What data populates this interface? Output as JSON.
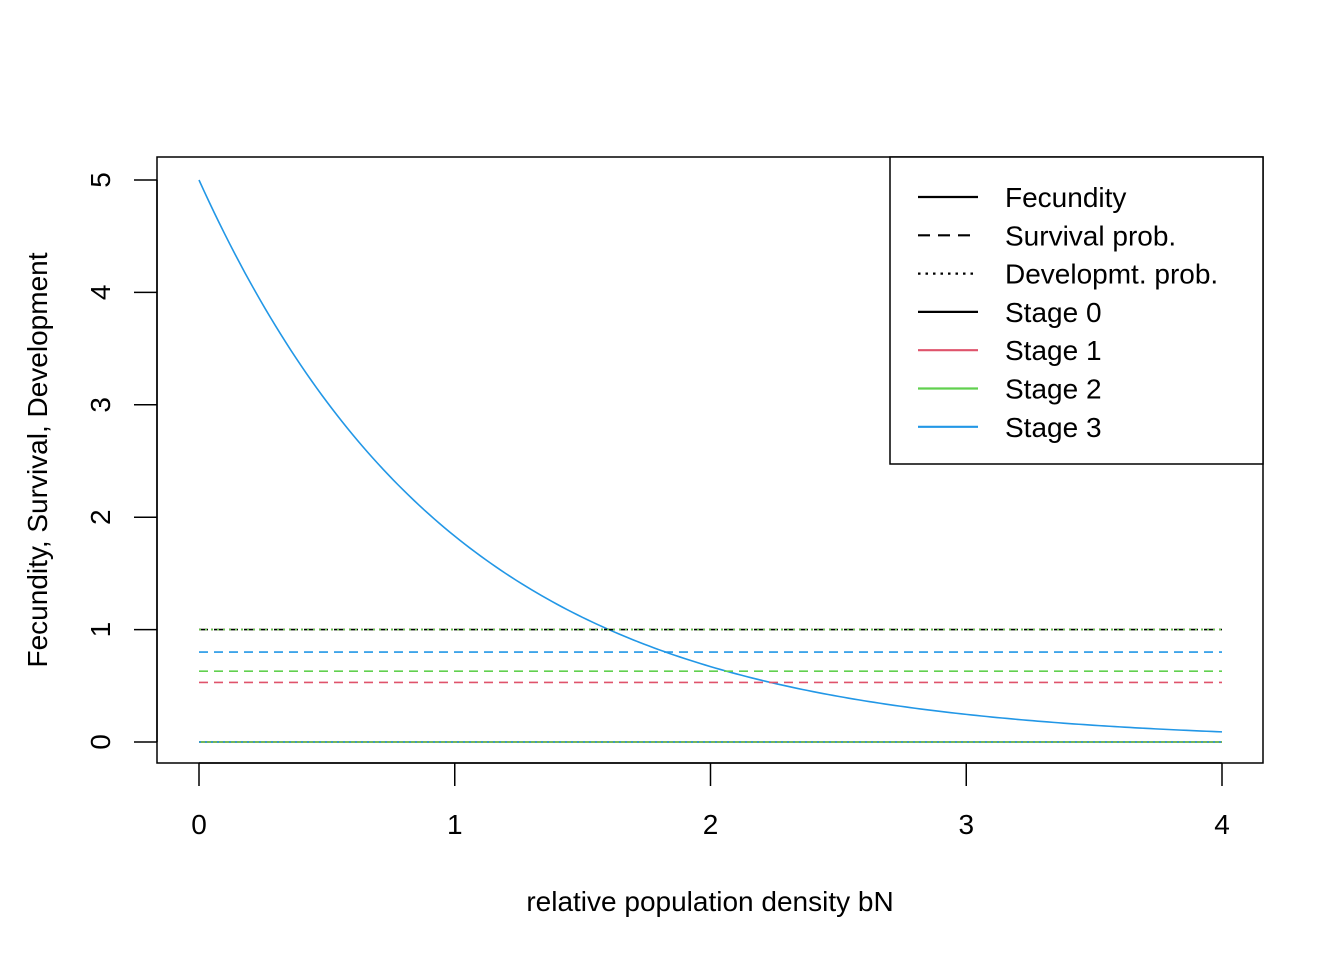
{
  "chart_data": {
    "type": "line",
    "title": "",
    "xlabel": "relative population density bN",
    "ylabel": "Fecundity, Survival, Development",
    "xlim": [
      0,
      4
    ],
    "ylim": [
      0,
      5
    ],
    "x_ticks": [
      "0",
      "1",
      "2",
      "3",
      "4"
    ],
    "y_ticks": [
      "0",
      "1",
      "2",
      "3",
      "4",
      "5"
    ],
    "grid": false,
    "legend_position": "top-right",
    "legend": [
      {
        "label": "Fecundity",
        "color": "#000000",
        "dash": "solid"
      },
      {
        "label": "Survival prob.",
        "color": "#000000",
        "dash": "dashed"
      },
      {
        "label": "Developmt. prob.",
        "color": "#000000",
        "dash": "dotted"
      },
      {
        "label": "Stage 0",
        "color": "#000000",
        "dash": "solid"
      },
      {
        "label": "Stage 1",
        "color": "#DF536B",
        "dash": "solid"
      },
      {
        "label": "Stage 2",
        "color": "#61D04F",
        "dash": "solid"
      },
      {
        "label": "Stage 3",
        "color": "#2297E6",
        "dash": "solid"
      }
    ],
    "series": [
      {
        "measure": "Fecundity",
        "stage": "Stage 0",
        "color": "#000000",
        "dash": "solid",
        "x": [
          0,
          4
        ],
        "y": [
          0,
          0
        ]
      },
      {
        "measure": "Fecundity",
        "stage": "Stage 1",
        "color": "#DF536B",
        "dash": "solid",
        "x": [
          0,
          4
        ],
        "y": [
          0,
          0
        ]
      },
      {
        "measure": "Fecundity",
        "stage": "Stage 2",
        "color": "#61D04F",
        "dash": "solid",
        "x": [
          0,
          4
        ],
        "y": [
          0,
          0
        ]
      },
      {
        "measure": "Fecundity",
        "stage": "Stage 3",
        "color": "#2297E6",
        "dash": "solid",
        "x": [
          0,
          0.25,
          0.5,
          0.75,
          1,
          1.25,
          1.5,
          1.75,
          2,
          2.25,
          2.5,
          2.75,
          3,
          3.25,
          3.5,
          3.75,
          4
        ],
        "y": [
          5.0,
          3.89,
          3.03,
          2.36,
          1.84,
          1.43,
          1.12,
          0.87,
          0.68,
          0.53,
          0.41,
          0.32,
          0.25,
          0.19,
          0.15,
          0.12,
          0.09
        ]
      },
      {
        "measure": "Survival prob.",
        "stage": "Stage 0",
        "color": "#000000",
        "dash": "dashed",
        "x": [
          0,
          4
        ],
        "y": [
          1.0,
          1.0
        ]
      },
      {
        "measure": "Survival prob.",
        "stage": "Stage 1",
        "color": "#DF536B",
        "dash": "dashed",
        "x": [
          0,
          4
        ],
        "y": [
          0.53,
          0.53
        ]
      },
      {
        "measure": "Survival prob.",
        "stage": "Stage 2",
        "color": "#61D04F",
        "dash": "dashed",
        "x": [
          0,
          4
        ],
        "y": [
          0.63,
          0.63
        ]
      },
      {
        "measure": "Survival prob.",
        "stage": "Stage 3",
        "color": "#2297E6",
        "dash": "dashed",
        "x": [
          0,
          4
        ],
        "y": [
          0.8,
          0.8
        ]
      },
      {
        "measure": "Developmt. prob.",
        "stage": "Stage 0",
        "color": "#000000",
        "dash": "dotted",
        "x": [
          0,
          4
        ],
        "y": [
          1.0,
          1.0
        ]
      },
      {
        "measure": "Developmt. prob.",
        "stage": "Stage 1",
        "color": "#DF536B",
        "dash": "dotted",
        "x": [
          0,
          4
        ],
        "y": [
          1.0,
          1.0
        ]
      },
      {
        "measure": "Developmt. prob.",
        "stage": "Stage 2",
        "color": "#61D04F",
        "dash": "dotted",
        "x": [
          0,
          4
        ],
        "y": [
          1.0,
          1.0
        ]
      },
      {
        "measure": "Developmt. prob.",
        "stage": "Stage 3",
        "color": "#2297E6",
        "dash": "dotted",
        "x": [
          0,
          4
        ],
        "y": [
          0,
          0
        ]
      }
    ]
  }
}
